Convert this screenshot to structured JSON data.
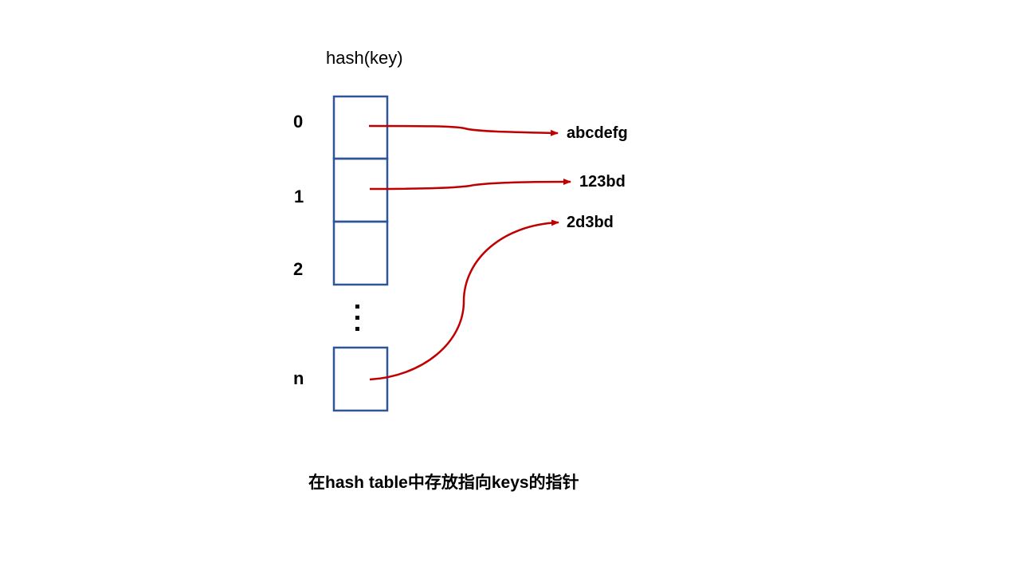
{
  "header": {
    "label": "hash(key)"
  },
  "indices": [
    "0",
    "1",
    "2",
    "n"
  ],
  "keys": [
    "abcdefg",
    "123bd",
    "2d3bd"
  ],
  "caption": "在hash table中存放指向keys的指针",
  "colors": {
    "box_stroke": "#2f5597",
    "arrow": "#c00000",
    "text": "#000000"
  },
  "connections": [
    {
      "from": "0",
      "to": "abcdefg"
    },
    {
      "from": "1",
      "to": "123bd"
    },
    {
      "from": "n",
      "to": "2d3bd"
    }
  ]
}
